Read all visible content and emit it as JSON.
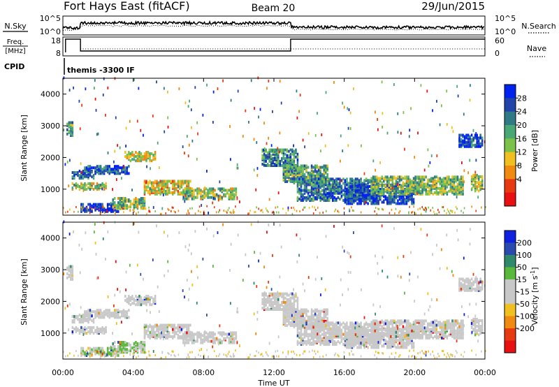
{
  "header": {
    "station": "Fort Hays East (fitACF)",
    "beam": "Beam 20",
    "date": "29/Jun/2015"
  },
  "top_panels": {
    "nsky_label": "N.Sky",
    "noise_ticks": [
      "10^5",
      "10^0"
    ],
    "nsearch_label": "N.Search",
    "freq_label": "Freq.",
    "freq_unit": "[MHz]",
    "freq_ticks": [
      "18",
      "8"
    ],
    "nave_label": "Nave",
    "nave_ticks": [
      "60",
      "0"
    ],
    "cpid_label": "CPID",
    "cpid_value": "themis -3300 IF"
  },
  "chart_data": [
    {
      "type": "heatmap",
      "panel": "power",
      "ylabel": "Slant Range [km]",
      "yticks": [
        1000,
        2000,
        3000,
        4000
      ],
      "ylim": [
        180,
        4500
      ],
      "xlim": [
        0,
        24
      ],
      "colorbar_label": "Power [dB]",
      "colorbar_ticks": [
        "28",
        "24",
        "20",
        "16",
        "12",
        "8",
        "4"
      ],
      "colorbar_colors": [
        "#0022ee",
        "#2244aa",
        "#2f7a86",
        "#4aa874",
        "#7cc24a",
        "#f0c020",
        "#f08a10",
        "#e83a10",
        "#e81010"
      ],
      "echo_regions": [
        {
          "t0": 0.2,
          "t1": 0.6,
          "r0": 2650,
          "r1": 3100,
          "level": 0.65
        },
        {
          "t0": 0.5,
          "t1": 1.8,
          "r0": 1300,
          "r1": 1550,
          "level": 0.75
        },
        {
          "t0": 1.2,
          "t1": 3.8,
          "r0": 1450,
          "r1": 1700,
          "level": 0.8
        },
        {
          "t0": 3.5,
          "t1": 5.2,
          "r0": 1850,
          "r1": 2150,
          "level": 0.45
        },
        {
          "t0": 0.5,
          "t1": 2.5,
          "r0": 950,
          "r1": 1150,
          "level": 0.5
        },
        {
          "t0": 1.0,
          "t1": 3.2,
          "r0": 250,
          "r1": 500,
          "level": 0.95
        },
        {
          "t0": 2.8,
          "t1": 4.6,
          "r0": 350,
          "r1": 700,
          "level": 0.55
        },
        {
          "t0": 4.6,
          "t1": 7.2,
          "r0": 800,
          "r1": 1250,
          "level": 0.4
        },
        {
          "t0": 6.8,
          "t1": 9.8,
          "r0": 650,
          "r1": 1000,
          "level": 0.5
        },
        {
          "t0": 11.3,
          "t1": 13.3,
          "r0": 1700,
          "r1": 2200,
          "level": 0.7
        },
        {
          "t0": 12.5,
          "t1": 15.0,
          "r0": 1150,
          "r1": 1700,
          "level": 0.6
        },
        {
          "t0": 13.3,
          "t1": 17.8,
          "r0": 600,
          "r1": 1300,
          "level": 0.75
        },
        {
          "t0": 16.0,
          "t1": 20.0,
          "r0": 500,
          "r1": 1100,
          "level": 0.88
        },
        {
          "t0": 17.5,
          "t1": 22.8,
          "r0": 800,
          "r1": 1350,
          "level": 0.55
        },
        {
          "t0": 22.5,
          "t1": 23.9,
          "r0": 2300,
          "r1": 2700,
          "level": 0.85
        },
        {
          "t0": 23.2,
          "t1": 23.9,
          "r0": 900,
          "r1": 1400,
          "level": 0.5
        }
      ]
    },
    {
      "type": "heatmap",
      "panel": "velocity",
      "ylabel": "Slant Range [km]",
      "xlabel": "Time UT",
      "xticks": [
        "00:00",
        "04:00",
        "08:00",
        "12:00",
        "16:00",
        "20:00",
        "00:00"
      ],
      "yticks": [
        1000,
        2000,
        3000,
        4000
      ],
      "ylim": [
        180,
        4500
      ],
      "xlim": [
        0,
        24
      ],
      "colorbar_label": "Velocity [m s^-1]",
      "colorbar_ticks": [
        "200",
        "100",
        "50",
        "15",
        "-15",
        "-50",
        "-100",
        "-200"
      ],
      "colorbar_colors": [
        "#1020e0",
        "#2a4ab0",
        "#2e8a6a",
        "#5ab83a",
        "#c8c8c8",
        "#c8c8c8",
        "#f0c020",
        "#f08a10",
        "#e83a10",
        "#e81010"
      ],
      "ground_color": "#c8c8c8"
    }
  ]
}
